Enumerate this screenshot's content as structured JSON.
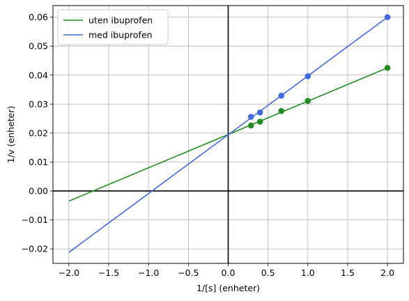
{
  "chart_data": {
    "type": "scatter",
    "title": "",
    "xlabel": "1/[s] (enheter)",
    "ylabel": "1/v (enheter)",
    "xlim": [
      -2.2,
      2.2
    ],
    "ylim": [
      -0.025,
      0.064
    ],
    "xticks": [
      -2.0,
      -1.5,
      -1.0,
      -0.5,
      0.0,
      0.5,
      1.0,
      1.5,
      2.0
    ],
    "xtick_labels": [
      "−2.0",
      "−1.5",
      "−1.0",
      "−0.5",
      "0.0",
      "0.5",
      "1.0",
      "1.5",
      "2.0"
    ],
    "yticks": [
      -0.02,
      -0.01,
      0.0,
      0.01,
      0.02,
      0.03,
      0.04,
      0.05,
      0.06
    ],
    "ytick_labels": [
      "−0.02",
      "−0.01",
      "0.00",
      "0.01",
      "0.02",
      "0.03",
      "0.04",
      "0.05",
      "0.06"
    ],
    "grid": true,
    "legend_position": "top-left",
    "series": [
      {
        "name": "uten ibuprofen",
        "color": "#228b22",
        "points": {
          "x": [
            0.286,
            0.4,
            0.667,
            1.0,
            2.0
          ],
          "y": [
            0.0226,
            0.0239,
            0.0276,
            0.0311,
            0.0425
          ]
        },
        "line": {
          "x": [
            -2.0,
            2.0
          ],
          "y": [
            -0.0035,
            0.0425
          ]
        }
      },
      {
        "name": "med ibuprofen",
        "color": "#4169e1",
        "points": {
          "x": [
            0.286,
            0.4,
            0.667,
            1.0,
            2.0
          ],
          "y": [
            0.0256,
            0.0271,
            0.0329,
            0.0396,
            0.06
          ]
        },
        "line": {
          "x": [
            -2.0,
            2.0
          ],
          "y": [
            -0.0212,
            0.06
          ]
        }
      }
    ]
  }
}
